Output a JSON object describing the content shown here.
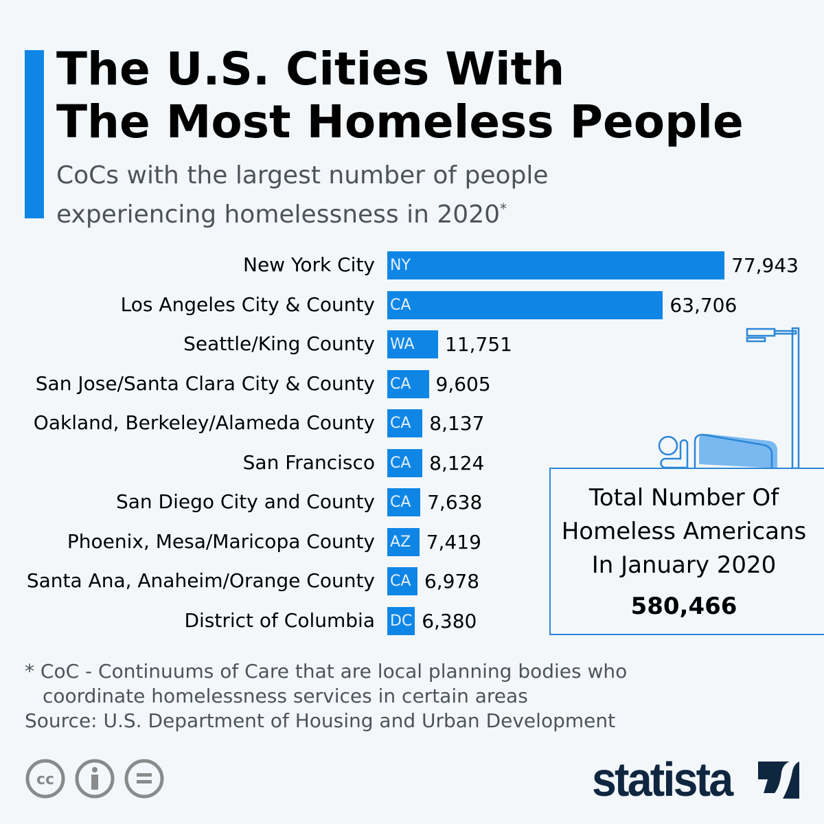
{
  "header": {
    "title_line1": "The U.S. Cities With",
    "title_line2": "The Most Homeless People",
    "subtitle_line1": "CoCs with the largest number of people",
    "subtitle_line2": "experiencing homelessness in 2020",
    "subtitle_mark": "*"
  },
  "chart_data": {
    "type": "bar",
    "orientation": "horizontal",
    "categories": [
      "New York City",
      "Los Angeles City & County",
      "Seattle/King County",
      "San Jose/Santa Clara City & County",
      "Oakland, Berkeley/Alameda County",
      "San Francisco",
      "San Diego City and County",
      "Phoenix, Mesa/Maricopa County",
      "Santa Ana, Anaheim/Orange County",
      "District of Columbia"
    ],
    "state_labels": [
      "NY",
      "CA",
      "WA",
      "CA",
      "CA",
      "CA",
      "CA",
      "AZ",
      "CA",
      "DC"
    ],
    "values": [
      77943,
      63706,
      11751,
      9605,
      8137,
      8124,
      7638,
      7419,
      6978,
      6380
    ],
    "value_labels": [
      "77,943",
      "63,706",
      "11,751",
      "9,605",
      "8,137",
      "8,124",
      "7,638",
      "7,419",
      "6,978",
      "6,380"
    ],
    "bar_color": "#0f86e6",
    "grid": false
  },
  "callout": {
    "line1": "Total Number Of",
    "line2": "Homeless Americans",
    "line3": "In January 2020",
    "total": "580,466"
  },
  "footer": {
    "note_line1": "* CoC - Continuums of Care that are local planning bodies who",
    "note_line2": "coordinate homelessness services in certain areas",
    "source": "Source: U.S. Department of Housing and Urban Development",
    "logo": "statista"
  }
}
